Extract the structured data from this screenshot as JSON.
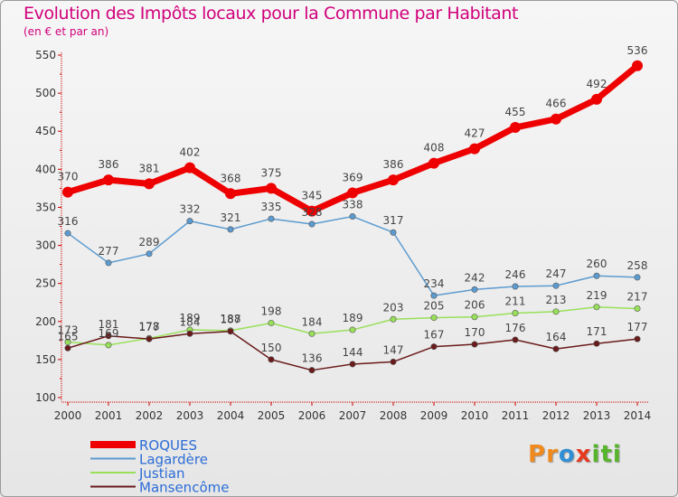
{
  "title": "Evolution des Impôts locaux pour la Commune par Habitant",
  "subtitle": "(en € et par an)",
  "logo": {
    "text": "ProXiti",
    "letters": [
      "P",
      "r",
      "o",
      "x",
      "i",
      "t",
      "i"
    ],
    "colors": [
      "#f08a1c",
      "#f08a1c",
      "#2f8fd5",
      "#e63a1e",
      "#56b52b",
      "#56b52b",
      "#56b52b"
    ]
  },
  "chart_data": {
    "type": "line",
    "x": [
      2000,
      2001,
      2002,
      2003,
      2004,
      2005,
      2006,
      2007,
      2008,
      2009,
      2010,
      2011,
      2012,
      2013,
      2014
    ],
    "ylim": [
      100,
      550
    ],
    "yticks": [
      100,
      150,
      200,
      250,
      300,
      350,
      400,
      450,
      500,
      550
    ],
    "grid": false,
    "legend_position": "bottom-left",
    "series": [
      {
        "name": "Lagardère",
        "color": "#5b9bd0",
        "values": [
          316,
          277,
          289,
          332,
          321,
          335,
          328,
          338,
          317,
          234,
          242,
          246,
          247,
          260,
          258
        ]
      },
      {
        "name": "Justian",
        "color": "#99e05a",
        "values": [
          173,
          169,
          178,
          189,
          188,
          198,
          184,
          189,
          203,
          205,
          206,
          211,
          213,
          219,
          217
        ]
      },
      {
        "name": "Mansencôme",
        "color": "#6a1a1a",
        "values": [
          165,
          181,
          177,
          184,
          187,
          150,
          136,
          144,
          147,
          167,
          170,
          176,
          164,
          171,
          177
        ]
      },
      {
        "name": "ROQUES",
        "color": "#ee0000",
        "values": [
          370,
          386,
          381,
          402,
          368,
          375,
          345,
          369,
          386,
          408,
          427,
          455,
          466,
          492,
          536
        ]
      }
    ],
    "legend_order": [
      "ROQUES",
      "Lagardère",
      "Justian",
      "Mansencôme"
    ]
  }
}
